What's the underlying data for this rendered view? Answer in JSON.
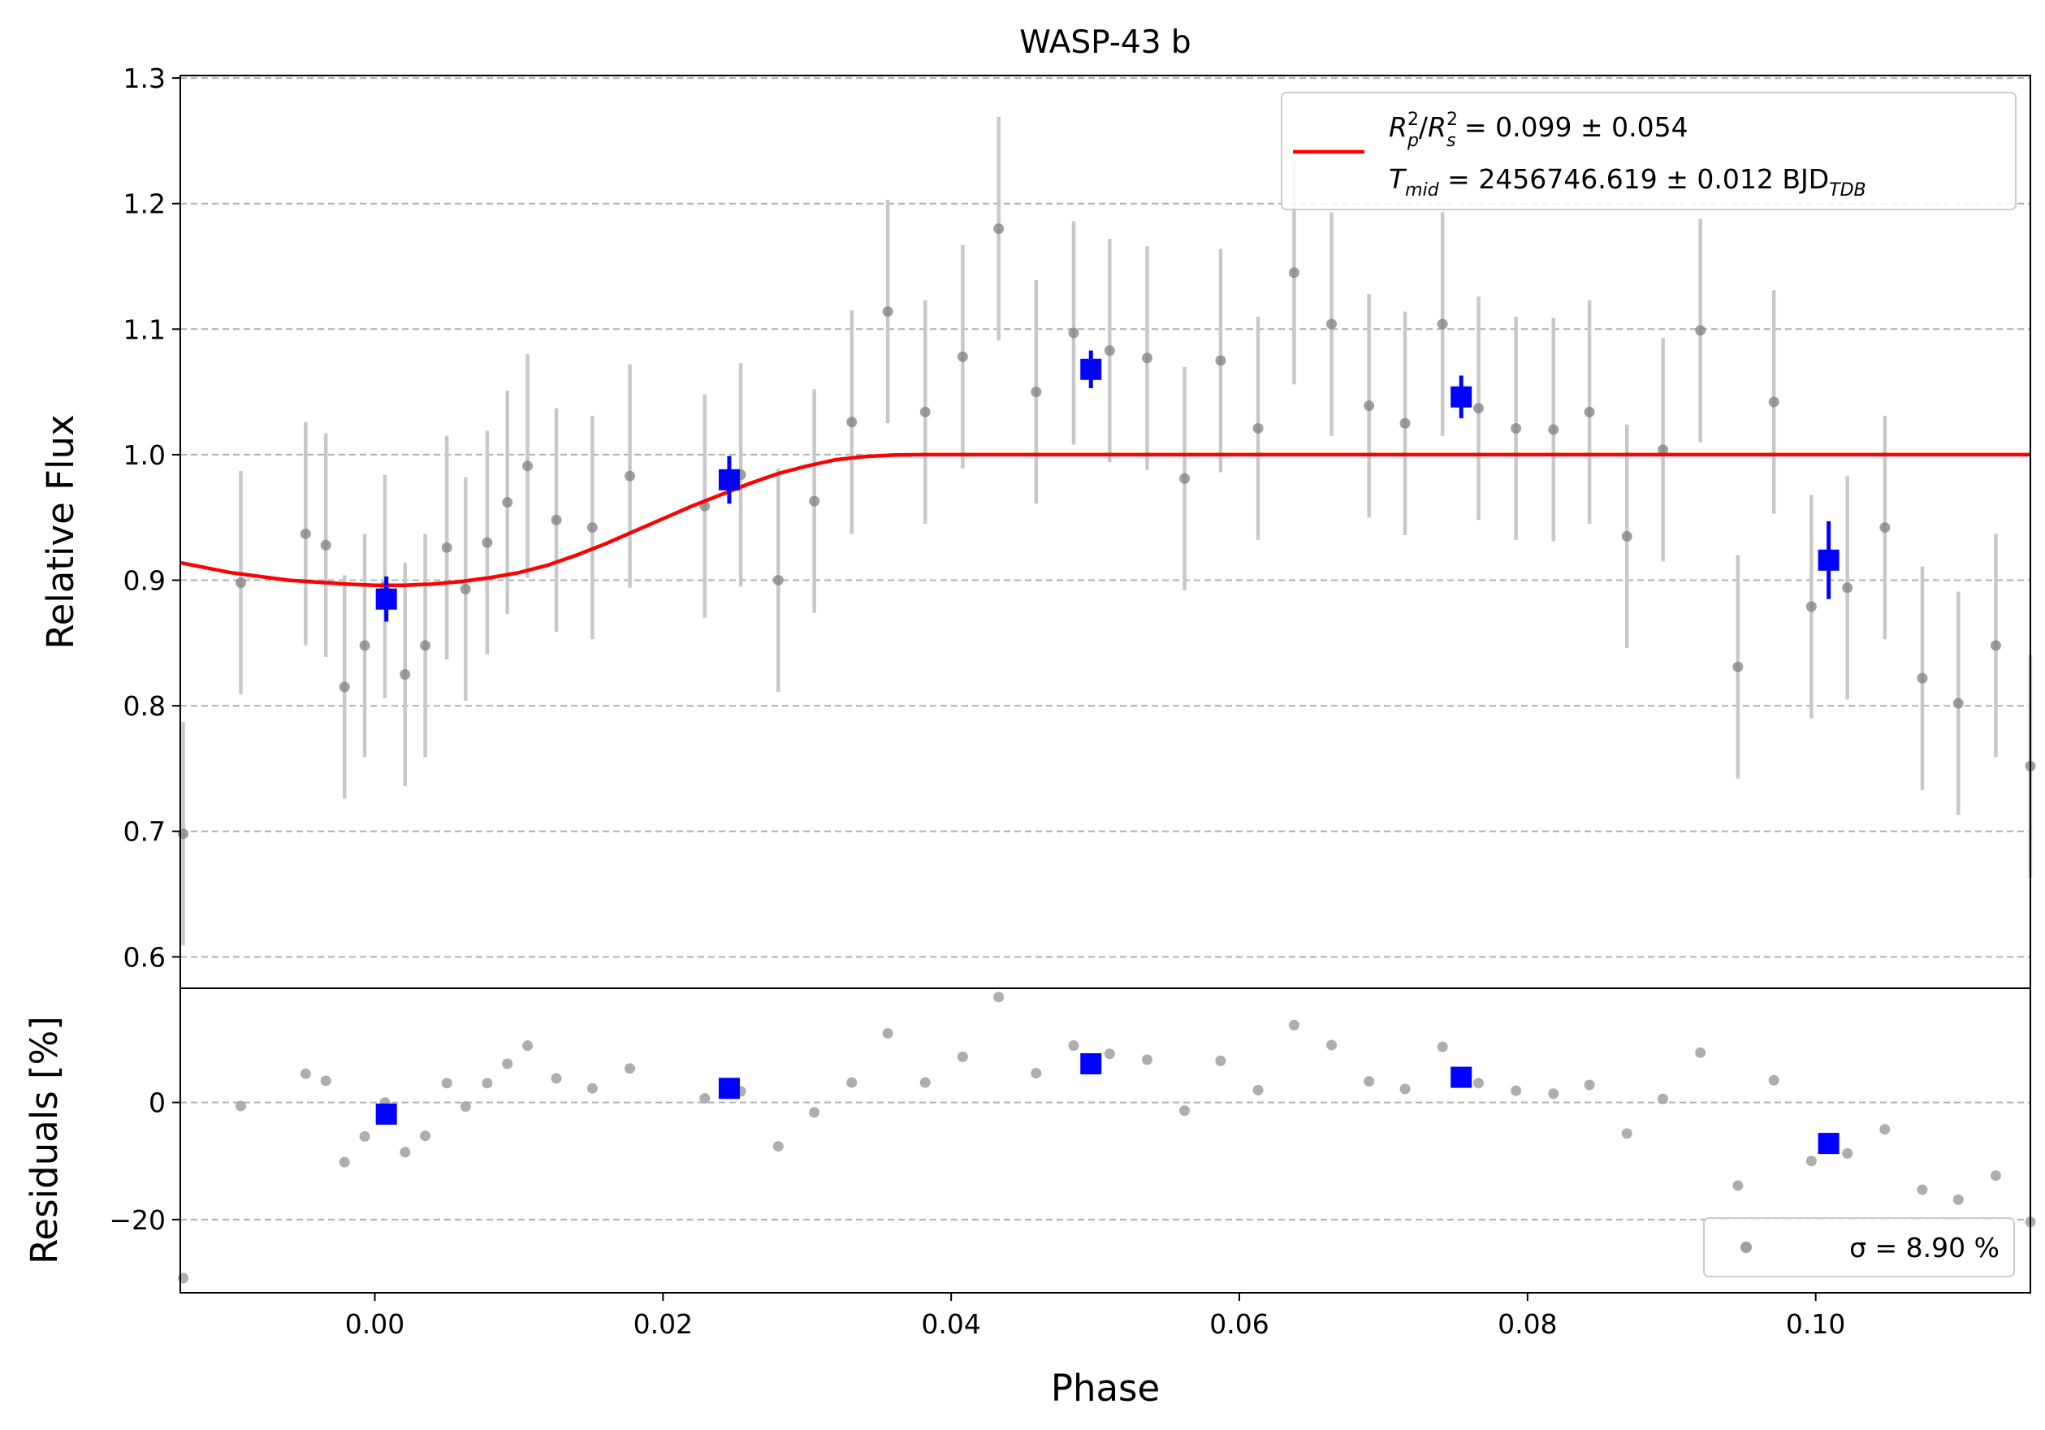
{
  "chart_data": [
    {
      "panel": "main",
      "type": "scatter",
      "title": "WASP-43 b",
      "xlabel": "",
      "ylabel": "Relative Flux",
      "xlim": [
        -0.0135,
        0.1149
      ],
      "ylim": [
        0.575,
        1.302
      ],
      "yticks": [
        "0.6",
        "0.7",
        "0.8",
        "0.9",
        "1.0",
        "1.1",
        "1.2",
        "1.3"
      ],
      "grid": "y-dashed",
      "legend_position": "top-right",
      "legend_lines": [
        {
          "prefix_main": "R",
          "prefix_sub1": "p",
          "prefix_sup1": "2",
          "sep": "/",
          "main2": "R",
          "sub2": "s",
          "sup2": "2",
          "text": " = 0.099 ± 0.054"
        },
        {
          "main": "T",
          "sub": "mid",
          "text": " = 2456746.619 ± 0.012 BJD",
          "suffix_sub": "TDB"
        }
      ],
      "model_curve": {
        "color": "#ff0000",
        "x": [
          -0.0135,
          -0.01,
          -0.006,
          -0.002,
          0.0,
          0.002,
          0.004,
          0.006,
          0.008,
          0.01,
          0.012,
          0.014,
          0.016,
          0.018,
          0.02,
          0.022,
          0.024,
          0.026,
          0.028,
          0.03,
          0.032,
          0.034,
          0.036,
          0.038,
          0.0385,
          0.05,
          0.06,
          0.07,
          0.08,
          0.09,
          0.1,
          0.11,
          0.1149
        ],
        "y": [
          0.914,
          0.906,
          0.9,
          0.897,
          0.896,
          0.896,
          0.897,
          0.899,
          0.902,
          0.906,
          0.912,
          0.92,
          0.929,
          0.939,
          0.949,
          0.959,
          0.968,
          0.977,
          0.985,
          0.991,
          0.996,
          0.9985,
          0.9997,
          1.0,
          1.0,
          1.0,
          1.0,
          1.0,
          1.0,
          1.0,
          1.0,
          1.0,
          1.0
        ]
      },
      "raw_points": {
        "color": "#808080",
        "errorbar_color": "#c8c8c8",
        "x": [
          -0.0133,
          -0.0093,
          -0.0048,
          -0.0034,
          -0.0021,
          -0.0007,
          0.0007,
          0.0021,
          0.0035,
          0.005,
          0.0063,
          0.0078,
          0.0092,
          0.0106,
          0.0126,
          0.0151,
          0.0177,
          0.0229,
          0.0254,
          0.028,
          0.0305,
          0.0331,
          0.0356,
          0.0382,
          0.0408,
          0.0433,
          0.0459,
          0.0485,
          0.051,
          0.0536,
          0.0562,
          0.0587,
          0.0613,
          0.0638,
          0.0664,
          0.069,
          0.0715,
          0.0741,
          0.0766,
          0.0792,
          0.0818,
          0.0843,
          0.0869,
          0.0894,
          0.092,
          0.0946,
          0.0971,
          0.0997,
          0.1022,
          0.1048,
          0.1074,
          0.1099,
          0.1125,
          0.1149
        ],
        "y": [
          0.698,
          0.898,
          0.937,
          0.928,
          0.815,
          0.848,
          0.895,
          0.825,
          0.848,
          0.926,
          0.893,
          0.93,
          0.962,
          0.991,
          0.948,
          0.942,
          0.983,
          0.959,
          0.984,
          0.9,
          0.963,
          1.026,
          1.114,
          1.034,
          1.078,
          1.18,
          1.05,
          1.097,
          1.083,
          1.077,
          0.981,
          1.075,
          1.021,
          1.145,
          1.104,
          1.039,
          1.025,
          1.104,
          1.037,
          1.021,
          1.02,
          1.034,
          0.935,
          1.004,
          1.099,
          0.831,
          1.042,
          0.879,
          0.894,
          0.942,
          0.822,
          0.802,
          0.848,
          0.752
        ],
        "yerr": 0.089
      },
      "binned_points": {
        "color": "#0000ff",
        "x": [
          0.0008,
          0.0246,
          0.0497,
          0.0754,
          0.1009
        ],
        "y": [
          0.885,
          0.98,
          1.068,
          1.046,
          0.916
        ],
        "yerr": [
          0.018,
          0.019,
          0.015,
          0.017,
          0.031
        ]
      }
    },
    {
      "panel": "residuals",
      "type": "scatter",
      "xlabel": "Phase",
      "ylabel": "Residuals [%]",
      "xlim": [
        -0.0135,
        0.1149
      ],
      "ylim": [
        -32.5,
        19.5
      ],
      "yticks": [
        "−20",
        "0"
      ],
      "xticks": [
        "0.00",
        "0.02",
        "0.04",
        "0.06",
        "0.08",
        "0.10"
      ],
      "grid": "y-dashed",
      "legend_position": "bottom-right",
      "legend_text": "σ = 8.90 %",
      "raw_points": {
        "color": "#a0a0a0",
        "x": [
          -0.0133,
          -0.0093,
          -0.0048,
          -0.0034,
          -0.0021,
          -0.0007,
          0.0007,
          0.0021,
          0.0035,
          0.005,
          0.0063,
          0.0078,
          0.0092,
          0.0106,
          0.0126,
          0.0151,
          0.0177,
          0.0229,
          0.0254,
          0.028,
          0.0305,
          0.0331,
          0.0356,
          0.0382,
          0.0408,
          0.0433,
          0.0459,
          0.0485,
          0.051,
          0.0536,
          0.0562,
          0.0587,
          0.0613,
          0.0638,
          0.0664,
          0.069,
          0.0715,
          0.0741,
          0.0766,
          0.0792,
          0.0818,
          0.0843,
          0.0869,
          0.0894,
          0.092,
          0.0946,
          0.0971,
          0.0997,
          0.1022,
          0.1048,
          0.1074,
          0.1099,
          0.1125,
          0.1149
        ],
        "y": [
          -30.0,
          -0.6,
          4.9,
          3.7,
          -10.2,
          -5.8,
          0.0,
          -8.5,
          -5.7,
          3.3,
          -0.7,
          3.3,
          6.6,
          9.7,
          4.1,
          2.4,
          5.8,
          0.7,
          1.9,
          -7.5,
          -1.7,
          3.4,
          11.8,
          3.4,
          7.8,
          18.0,
          5.0,
          9.7,
          8.3,
          7.3,
          -1.4,
          7.1,
          2.1,
          13.2,
          9.8,
          3.6,
          2.3,
          9.5,
          3.3,
          2.0,
          1.5,
          3.0,
          -5.3,
          0.6,
          8.5,
          -14.2,
          3.8,
          -10.0,
          -8.7,
          -4.6,
          -14.9,
          -16.6,
          -12.5,
          -20.4
        ]
      },
      "binned_points": {
        "color": "#0000ff",
        "x": [
          0.0008,
          0.0246,
          0.0497,
          0.0754,
          0.1009
        ],
        "y": [
          -2.0,
          2.4,
          6.6,
          4.3,
          -7.0
        ]
      }
    }
  ]
}
